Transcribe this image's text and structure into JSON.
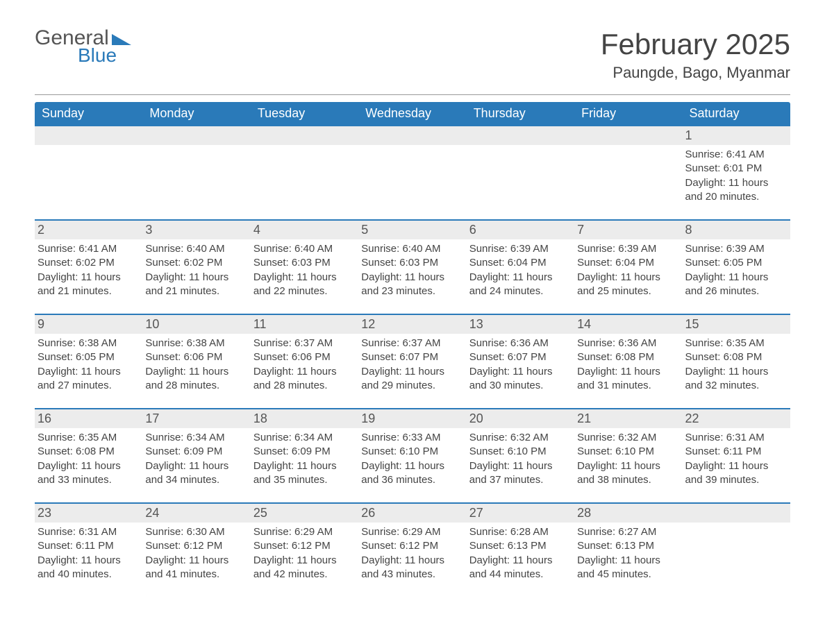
{
  "logo": {
    "text1": "General",
    "text2": "Blue"
  },
  "title": "February 2025",
  "location": "Paungde, Bago, Myanmar",
  "colors": {
    "header_bg": "#2a7ab9",
    "header_text": "#ffffff",
    "daynum_bg": "#ececec",
    "daynum_border": "#2a7ab9",
    "text": "#444444",
    "bg": "#ffffff"
  },
  "days_of_week": [
    "Sunday",
    "Monday",
    "Tuesday",
    "Wednesday",
    "Thursday",
    "Friday",
    "Saturday"
  ],
  "weeks": [
    {
      "nums": [
        "",
        "",
        "",
        "",
        "",
        "",
        "1"
      ],
      "details": [
        null,
        null,
        null,
        null,
        null,
        null,
        {
          "sunrise": "6:41 AM",
          "sunset": "6:01 PM",
          "daylight": "11 hours and 20 minutes."
        }
      ]
    },
    {
      "nums": [
        "2",
        "3",
        "4",
        "5",
        "6",
        "7",
        "8"
      ],
      "details": [
        {
          "sunrise": "6:41 AM",
          "sunset": "6:02 PM",
          "daylight": "11 hours and 21 minutes."
        },
        {
          "sunrise": "6:40 AM",
          "sunset": "6:02 PM",
          "daylight": "11 hours and 21 minutes."
        },
        {
          "sunrise": "6:40 AM",
          "sunset": "6:03 PM",
          "daylight": "11 hours and 22 minutes."
        },
        {
          "sunrise": "6:40 AM",
          "sunset": "6:03 PM",
          "daylight": "11 hours and 23 minutes."
        },
        {
          "sunrise": "6:39 AM",
          "sunset": "6:04 PM",
          "daylight": "11 hours and 24 minutes."
        },
        {
          "sunrise": "6:39 AM",
          "sunset": "6:04 PM",
          "daylight": "11 hours and 25 minutes."
        },
        {
          "sunrise": "6:39 AM",
          "sunset": "6:05 PM",
          "daylight": "11 hours and 26 minutes."
        }
      ]
    },
    {
      "nums": [
        "9",
        "10",
        "11",
        "12",
        "13",
        "14",
        "15"
      ],
      "details": [
        {
          "sunrise": "6:38 AM",
          "sunset": "6:05 PM",
          "daylight": "11 hours and 27 minutes."
        },
        {
          "sunrise": "6:38 AM",
          "sunset": "6:06 PM",
          "daylight": "11 hours and 28 minutes."
        },
        {
          "sunrise": "6:37 AM",
          "sunset": "6:06 PM",
          "daylight": "11 hours and 28 minutes."
        },
        {
          "sunrise": "6:37 AM",
          "sunset": "6:07 PM",
          "daylight": "11 hours and 29 minutes."
        },
        {
          "sunrise": "6:36 AM",
          "sunset": "6:07 PM",
          "daylight": "11 hours and 30 minutes."
        },
        {
          "sunrise": "6:36 AM",
          "sunset": "6:08 PM",
          "daylight": "11 hours and 31 minutes."
        },
        {
          "sunrise": "6:35 AM",
          "sunset": "6:08 PM",
          "daylight": "11 hours and 32 minutes."
        }
      ]
    },
    {
      "nums": [
        "16",
        "17",
        "18",
        "19",
        "20",
        "21",
        "22"
      ],
      "details": [
        {
          "sunrise": "6:35 AM",
          "sunset": "6:08 PM",
          "daylight": "11 hours and 33 minutes."
        },
        {
          "sunrise": "6:34 AM",
          "sunset": "6:09 PM",
          "daylight": "11 hours and 34 minutes."
        },
        {
          "sunrise": "6:34 AM",
          "sunset": "6:09 PM",
          "daylight": "11 hours and 35 minutes."
        },
        {
          "sunrise": "6:33 AM",
          "sunset": "6:10 PM",
          "daylight": "11 hours and 36 minutes."
        },
        {
          "sunrise": "6:32 AM",
          "sunset": "6:10 PM",
          "daylight": "11 hours and 37 minutes."
        },
        {
          "sunrise": "6:32 AM",
          "sunset": "6:10 PM",
          "daylight": "11 hours and 38 minutes."
        },
        {
          "sunrise": "6:31 AM",
          "sunset": "6:11 PM",
          "daylight": "11 hours and 39 minutes."
        }
      ]
    },
    {
      "nums": [
        "23",
        "24",
        "25",
        "26",
        "27",
        "28",
        ""
      ],
      "details": [
        {
          "sunrise": "6:31 AM",
          "sunset": "6:11 PM",
          "daylight": "11 hours and 40 minutes."
        },
        {
          "sunrise": "6:30 AM",
          "sunset": "6:12 PM",
          "daylight": "11 hours and 41 minutes."
        },
        {
          "sunrise": "6:29 AM",
          "sunset": "6:12 PM",
          "daylight": "11 hours and 42 minutes."
        },
        {
          "sunrise": "6:29 AM",
          "sunset": "6:12 PM",
          "daylight": "11 hours and 43 minutes."
        },
        {
          "sunrise": "6:28 AM",
          "sunset": "6:13 PM",
          "daylight": "11 hours and 44 minutes."
        },
        {
          "sunrise": "6:27 AM",
          "sunset": "6:13 PM",
          "daylight": "11 hours and 45 minutes."
        },
        null
      ]
    }
  ],
  "labels": {
    "sunrise": "Sunrise:",
    "sunset": "Sunset:",
    "daylight": "Daylight:"
  }
}
